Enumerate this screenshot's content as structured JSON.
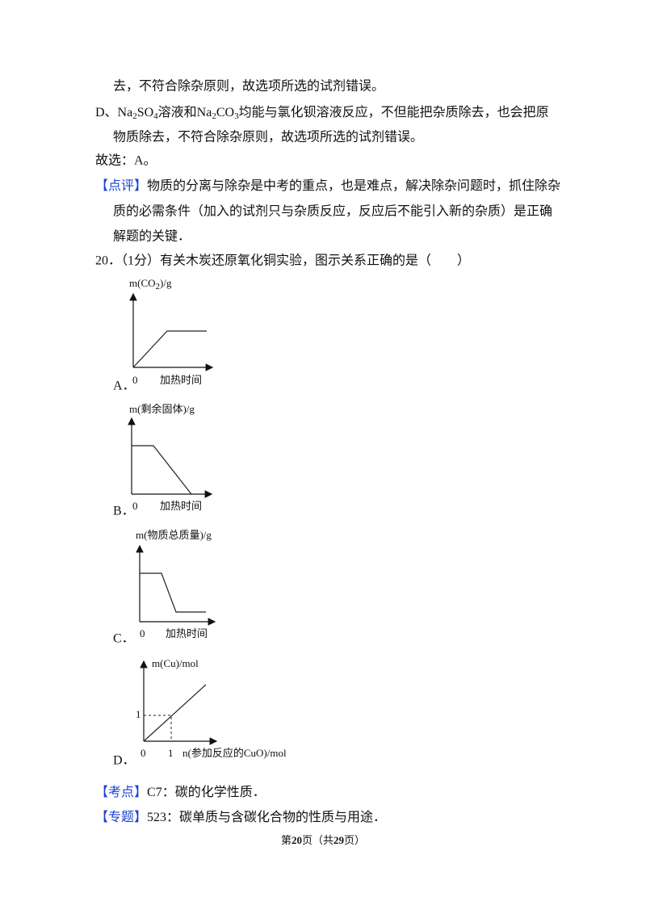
{
  "body": {
    "line_1": "去，不符合除杂原则，故选项所选的试剂错误。",
    "line_2": [
      "D、Na",
      "2",
      "SO",
      "4",
      "溶液和Na",
      "2",
      "CO",
      "3",
      "均能与氯化钡溶液反应，不但能把杂质除去，也会把原"
    ],
    "line_3": "物质除去，不符合除杂原则，故选项所选的试剂错误。",
    "line_4": "故选：A。",
    "comment": {
      "tag": "【点评】",
      "lines": [
        "物质的分离与除杂是中考的重点，也是难点，解决除杂问题时，抓住除杂",
        "质的必需条件（加入的试剂只与杂质反应，反应后不能引入新的杂质）是正确",
        "解题的关键．"
      ]
    }
  },
  "question": {
    "stem": "20．（1分）有关木炭还原氧化铜实验，图示关系正确的是（　　）",
    "options": [
      {
        "letter": "A．",
        "y_label": [
          "m(CO",
          "2",
          ")/g"
        ],
        "origin": "0",
        "x_label": "加热时间"
      },
      {
        "letter": "B．",
        "y_label": "m(剩余固体)/g",
        "origin": "0",
        "x_label": "加热时间"
      },
      {
        "letter": "C．",
        "y_label": "m(物质总质量)/g",
        "origin": "0",
        "x_label": "加热时间"
      },
      {
        "letter": "D．",
        "y_label": "m(Cu)/mol",
        "origin": "0",
        "y_tick": "1",
        "x_tick": "1",
        "x_label": "n(参加反应的CuO)/mol"
      }
    ]
  },
  "notes": [
    {
      "tag": "【考点】",
      "text": "C7：碳的化学性质．"
    },
    {
      "tag": "【专题】",
      "text": "523：碳单质与含碳化合物的性质与用途．"
    }
  ],
  "footer": [
    "第",
    "20",
    "页（共",
    "29",
    "页）"
  ]
}
